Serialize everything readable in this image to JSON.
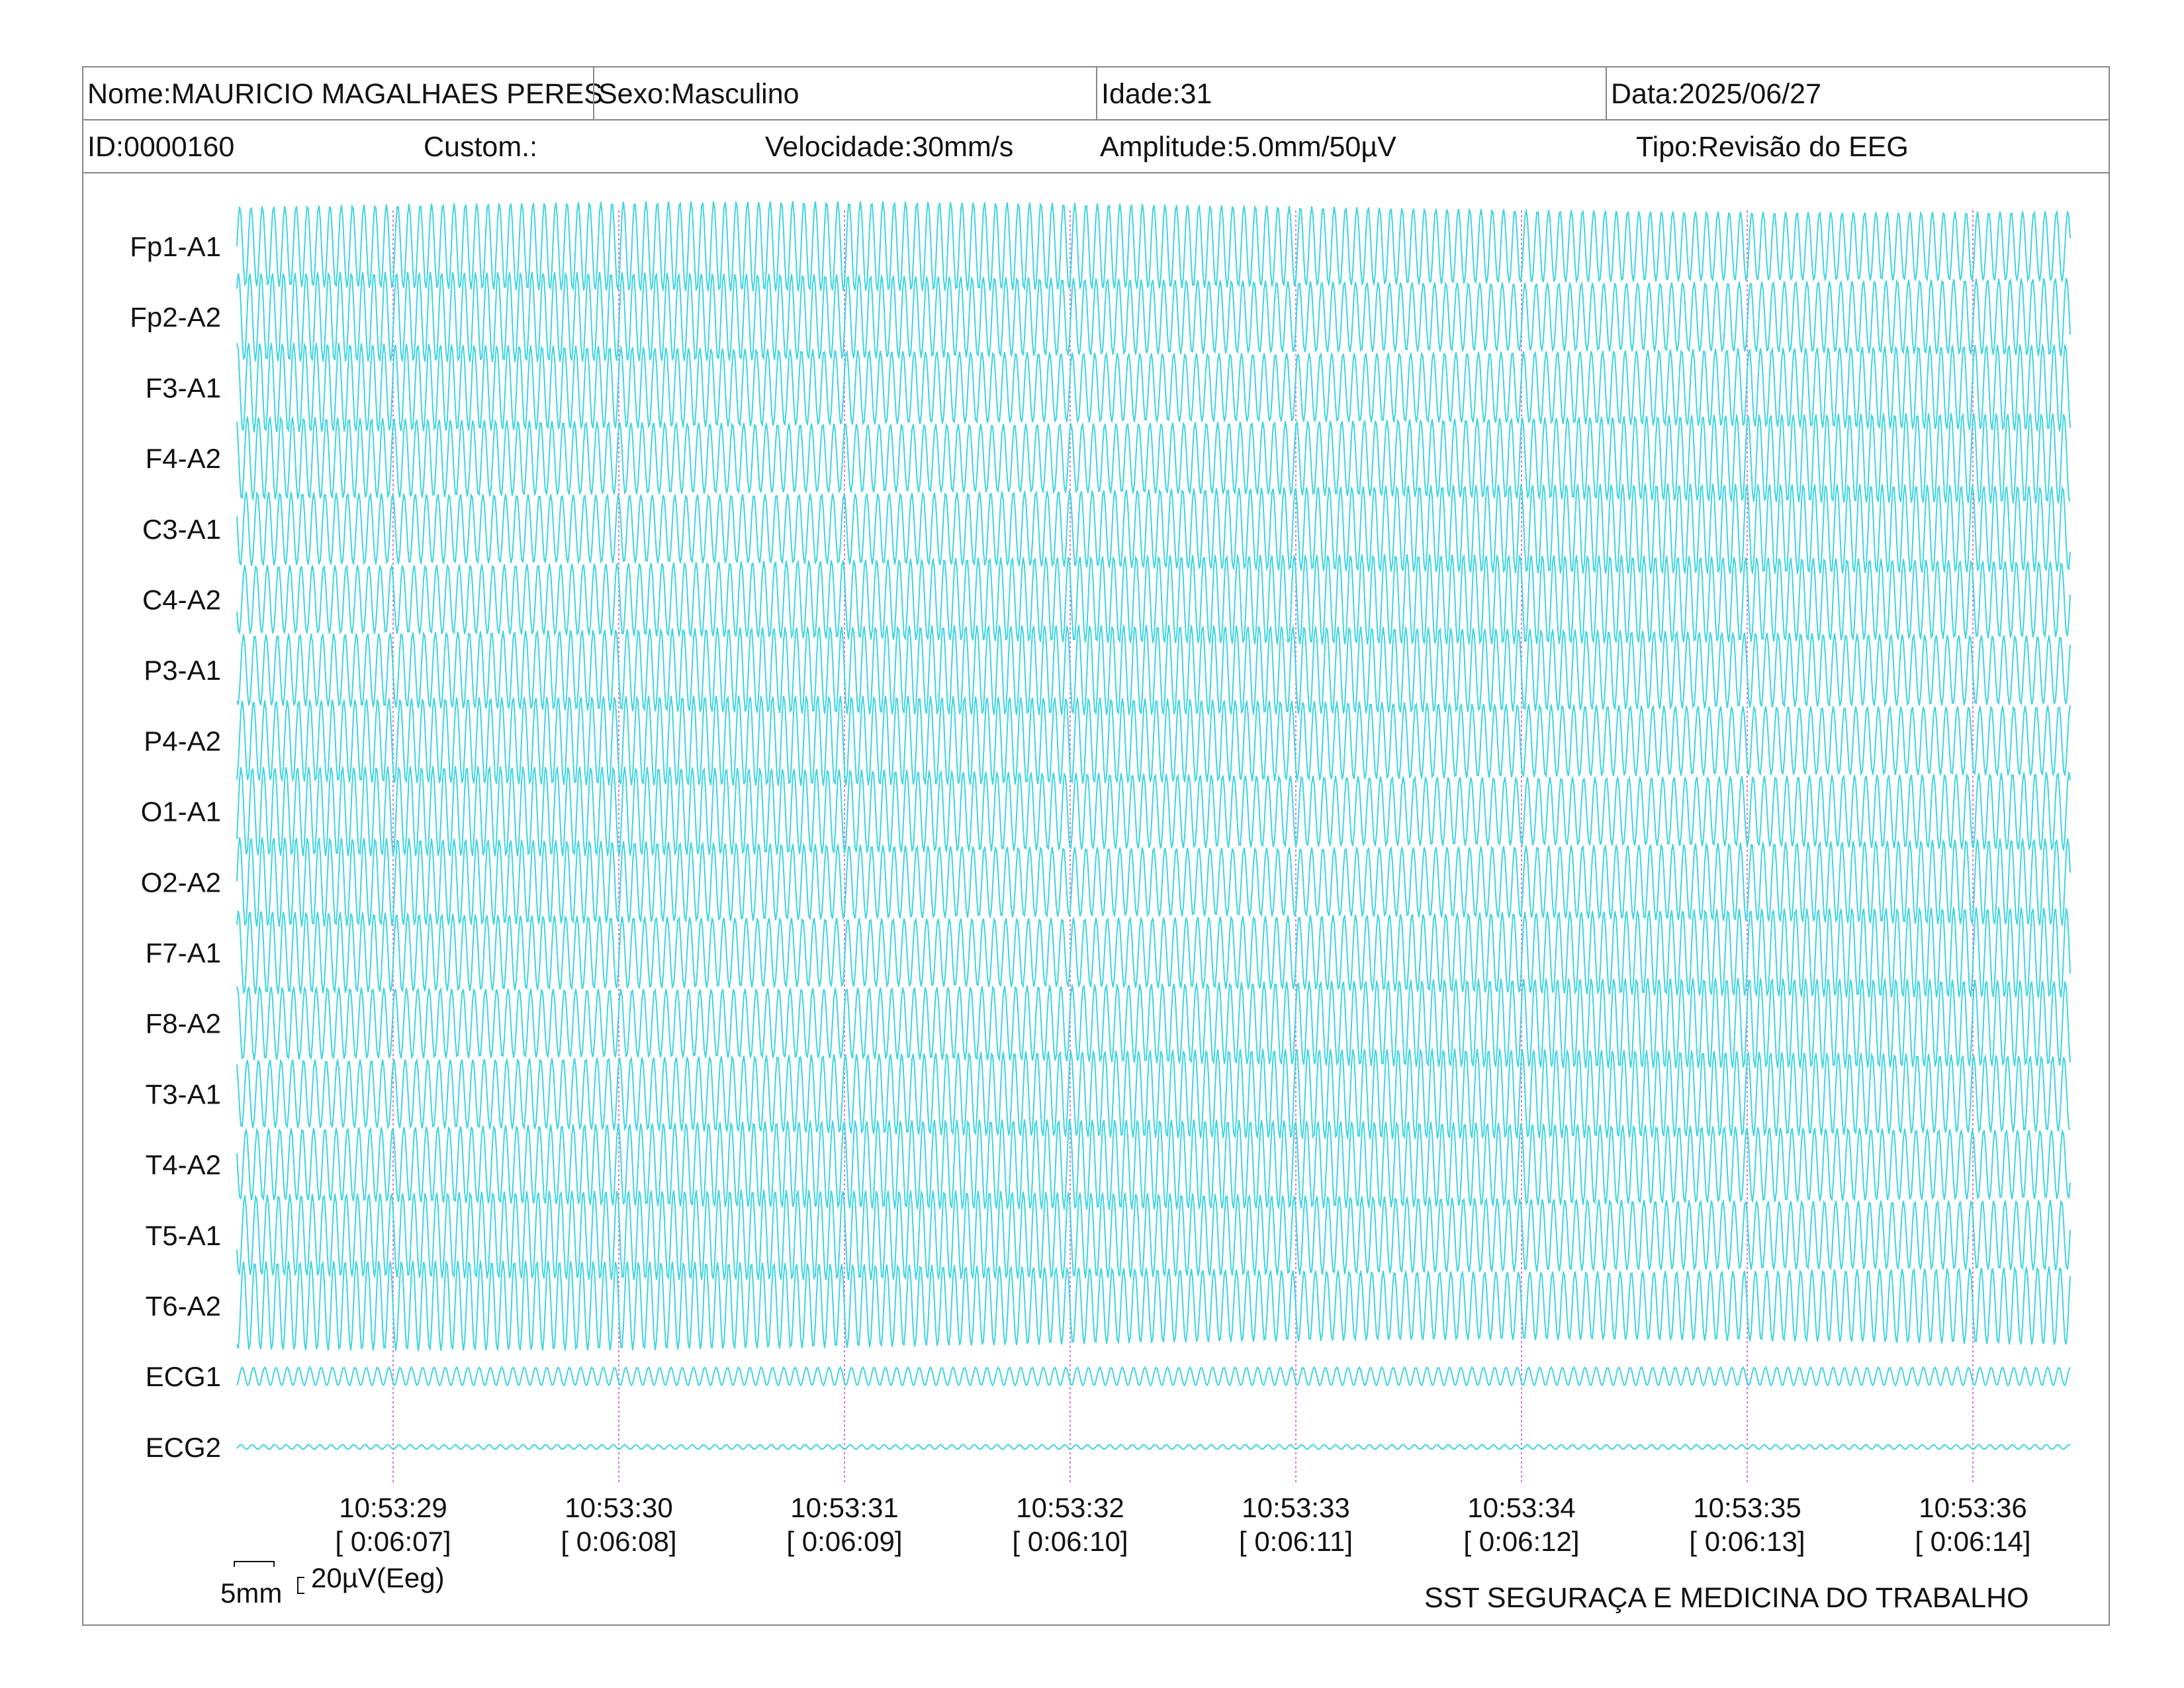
{
  "header": {
    "name": "Nome:MAURICIO MAGALHAES PERES",
    "sex": "Sexo:Masculino",
    "age": "Idade:31",
    "date": "Data:2025/06/27",
    "id": "ID:0000160",
    "custom": "Custom.:",
    "speed": "Velocidade:30mm/s",
    "amplitude": "Amplitude:5.0mm/50µV",
    "type": "Tipo:Revisão do EEG"
  },
  "scale": {
    "mm_label": "5mm",
    "uv_label": "20µV(Eeg)"
  },
  "footer": "SST SEGURAÇA E MEDICINA DO TRABALHO",
  "colors": {
    "trace": "#3fd4e0",
    "marker": "#d070d8",
    "border": "#888888"
  },
  "chart_data": {
    "type": "line",
    "channels": [
      "Fp1-A1",
      "Fp2-A2",
      "F3-A1",
      "F4-A2",
      "C3-A1",
      "C4-A2",
      "P3-A1",
      "P4-A2",
      "O1-A1",
      "O2-A2",
      "F7-A1",
      "F8-A2",
      "T3-A1",
      "T4-A2",
      "T5-A1",
      "T6-A2",
      "ECG1",
      "ECG2"
    ],
    "time_markers": [
      {
        "time": "10:53:29",
        "elapsed": "[ 0:06:07]"
      },
      {
        "time": "10:53:30",
        "elapsed": "[ 0:06:08]"
      },
      {
        "time": "10:53:31",
        "elapsed": "[ 0:06:09]"
      },
      {
        "time": "10:53:32",
        "elapsed": "[ 0:06:10]"
      },
      {
        "time": "10:53:33",
        "elapsed": "[ 0:06:11]"
      },
      {
        "time": "10:53:34",
        "elapsed": "[ 0:06:12]"
      },
      {
        "time": "10:53:35",
        "elapsed": "[ 0:06:13]"
      },
      {
        "time": "10:53:36",
        "elapsed": "[ 0:06:14]"
      }
    ],
    "sensitivity_uv_per_mm": 10,
    "speed_mm_per_s": 30,
    "amplitude_uv": {
      "eeg": 60,
      "ecg1": 12,
      "ecg2": 3
    },
    "frequency_hz": 20,
    "grid": false
  }
}
